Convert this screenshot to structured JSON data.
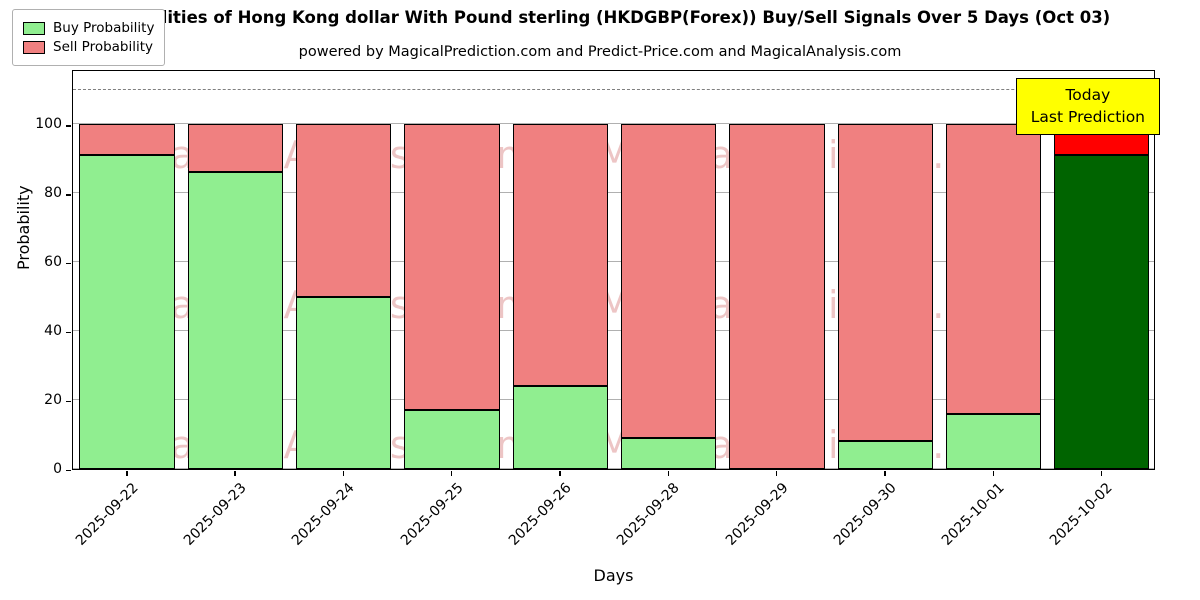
{
  "title": "Probabilities of Hong Kong dollar With Pound sterling (HKDGBP(Forex)) Buy/Sell Signals Over 5 Days (Oct 03)",
  "subtitle": "powered by MagicalPrediction.com and Predict-Price.com and MagicalAnalysis.com",
  "legend": {
    "buy": "Buy Probability",
    "sell": "Sell Probability"
  },
  "today_box": {
    "line1": "Today",
    "line2": "Last Prediction"
  },
  "watermarks": [
    "MagicalAnalysis.com",
    "MagicalPrediction.com"
  ],
  "chart_data": {
    "type": "bar",
    "stacked": true,
    "title": "Probabilities of Hong Kong dollar With Pound sterling (HKDGBP(Forex)) Buy/Sell Signals Over 5 Days (Oct 03)",
    "xlabel": "Days",
    "ylabel": "Probability",
    "categories": [
      "2025-09-22",
      "2025-09-23",
      "2025-09-24",
      "2025-09-25",
      "2025-09-26",
      "2025-09-28",
      "2025-09-29",
      "2025-09-30",
      "2025-10-01",
      "2025-10-02"
    ],
    "series": [
      {
        "name": "Buy Probability",
        "values": [
          91,
          86,
          50,
          17,
          24,
          9,
          0,
          8,
          16,
          91
        ]
      },
      {
        "name": "Sell Probability",
        "values": [
          9,
          14,
          50,
          83,
          76,
          91,
          100,
          92,
          84,
          9
        ]
      }
    ],
    "yticks": [
      0,
      20,
      40,
      60,
      80,
      100
    ],
    "ylim": [
      0,
      116
    ],
    "dashed_line_y": 110,
    "today_index": 9,
    "grid": true,
    "legend_position": "upper left",
    "colors": {
      "buy": "#90ee90",
      "sell": "#f08080",
      "today_buy": "#006400",
      "today_sell": "#ff0000",
      "edge": "#000000",
      "annotation_bg": "#ffff00"
    }
  }
}
